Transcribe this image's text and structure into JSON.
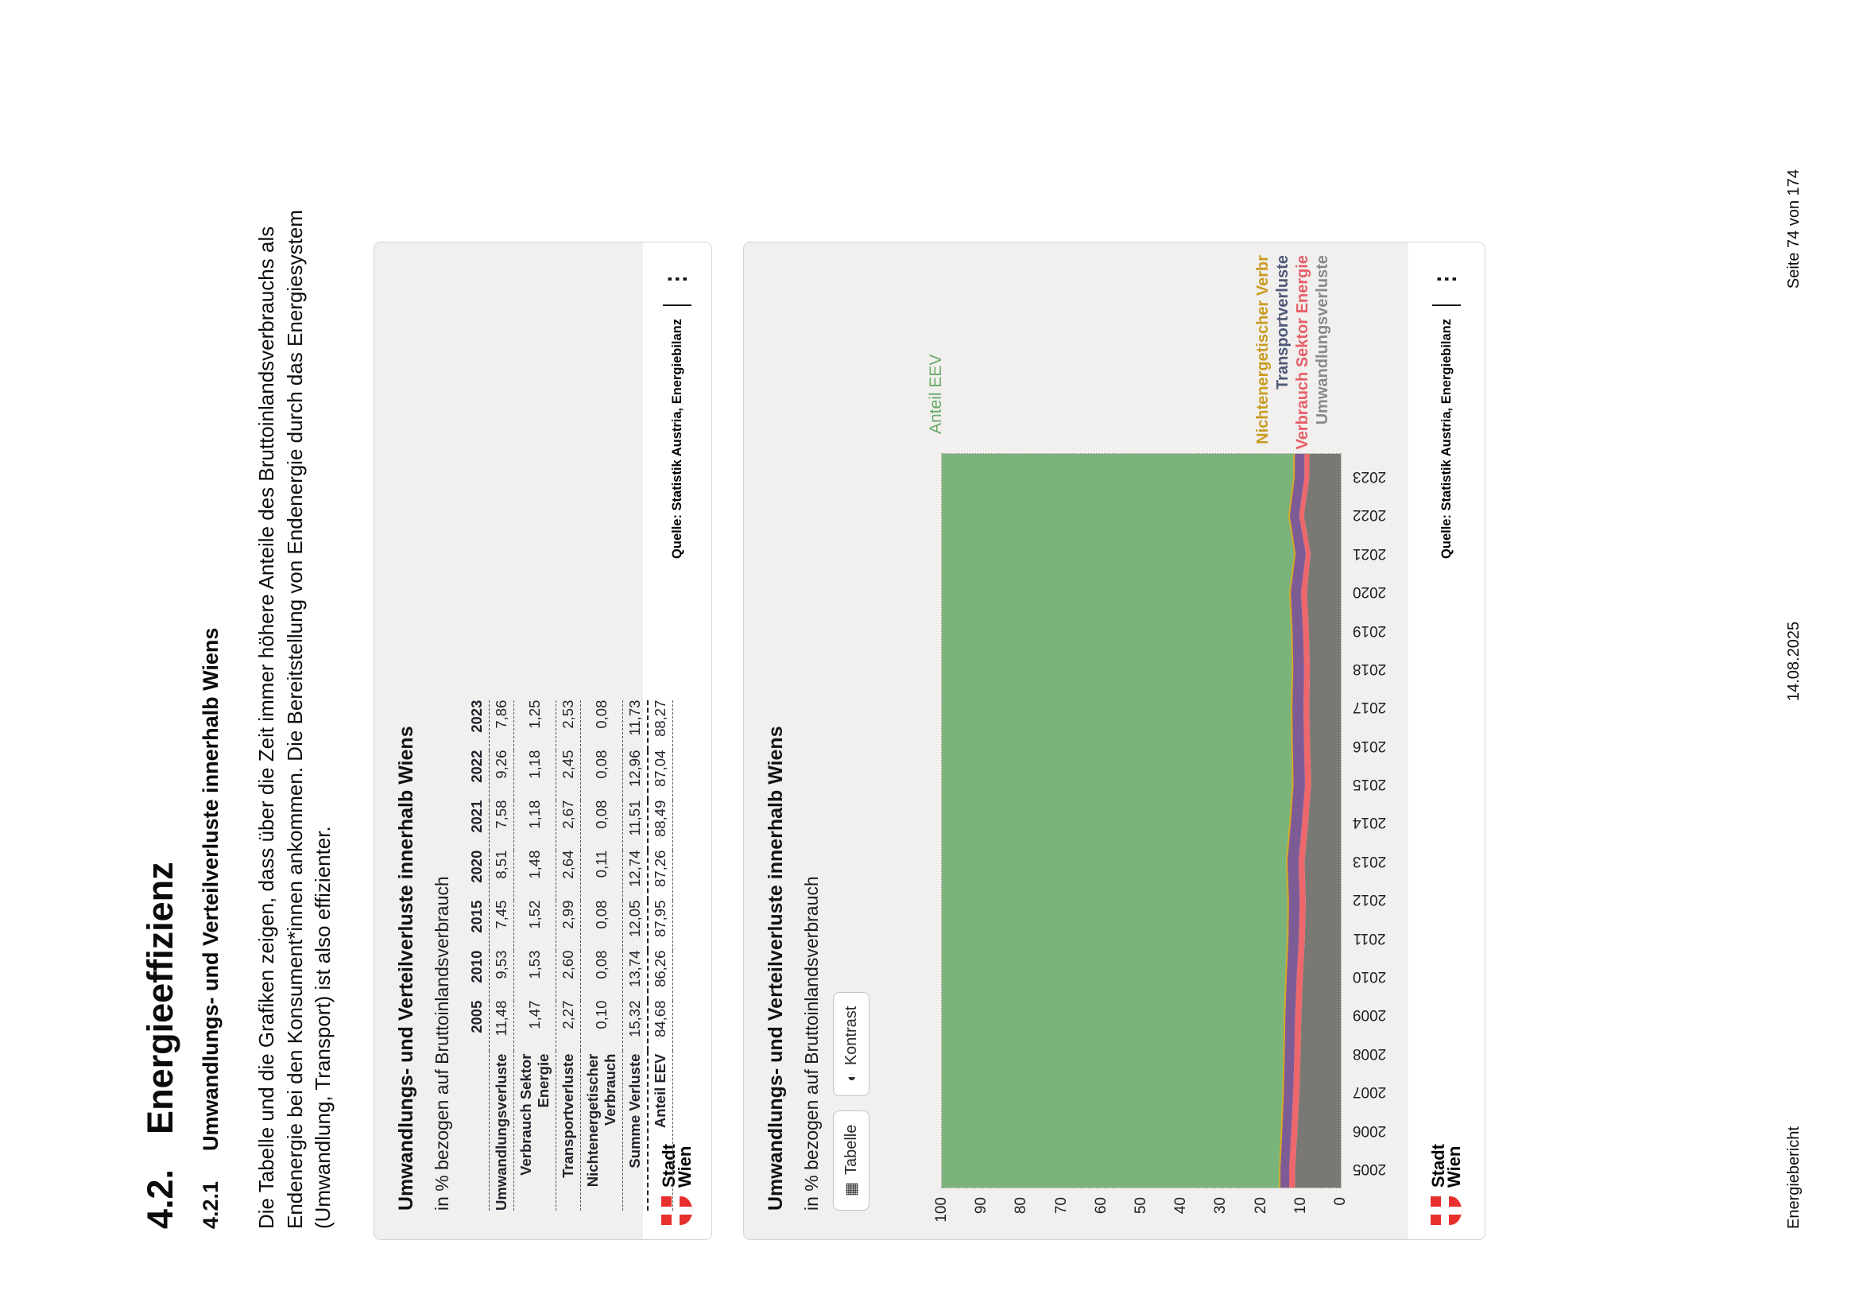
{
  "page": {
    "section_number": "4.2.",
    "section_title": "Energieeffizienz",
    "subsection_number": "4.2.1",
    "subsection_title": "Umwandlungs- und Verteilverluste innerhalb Wiens",
    "paragraph": "Die Tabelle und die Grafiken zeigen, dass über die Zeit immer höhere Anteile des Bruttoinlandsverbrauchs als Endenergie bei den Konsument*innen ankommen. Die Bereitstellung von Endenergie durch das Energiesystem (Umwandlung, Transport) ist also effizienter.",
    "footer": {
      "left": "Energiebericht",
      "center": "14.08.2025",
      "right": "Seite 74 von 174"
    }
  },
  "branding": {
    "logo_line1": "Stadt",
    "logo_line2": "Wien",
    "logo_color": "#e8302e"
  },
  "icons": {
    "menu": "⋮",
    "table": "▦",
    "contrast": "◐"
  },
  "table_card": {
    "title": "Umwandlungs- und Verteilverluste innerhalb Wiens",
    "subtitle": "in % bezogen auf Bruttoinlandsverbrauch",
    "columns": [
      "2005",
      "2010",
      "2015",
      "2020",
      "2021",
      "2022",
      "2023"
    ],
    "rows": [
      {
        "label": "Umwandlungsverluste",
        "values": [
          "11,48",
          "9,53",
          "7,45",
          "8,51",
          "7,58",
          "9,26",
          "7,86"
        ]
      },
      {
        "label": "Verbrauch Sektor Energie",
        "values": [
          "1,47",
          "1,53",
          "1,52",
          "1,48",
          "1,18",
          "1,18",
          "1,25"
        ]
      },
      {
        "label": "Transportverluste",
        "values": [
          "2,27",
          "2,60",
          "2,99",
          "2,64",
          "2,67",
          "2,45",
          "2,53"
        ]
      },
      {
        "label": "Nichtenergetischer Verbrauch",
        "values": [
          "0,10",
          "0,08",
          "0,08",
          "0,11",
          "0,08",
          "0,08",
          "0,08"
        ]
      },
      {
        "label": "Summe Verluste",
        "values": [
          "15,32",
          "13,74",
          "12,05",
          "12,74",
          "11,51",
          "12,96",
          "11,73"
        ]
      },
      {
        "label": "Anteil EEV",
        "values": [
          "84,68",
          "86,26",
          "87,95",
          "87,26",
          "88,49",
          "87,04",
          "88,27"
        ],
        "emphasis": true
      }
    ],
    "source": "Quelle: Statistik Austria, Energiebilanz"
  },
  "chart_card": {
    "title": "Umwandlungs- und Verteilverluste innerhalb Wiens",
    "subtitle": "in % bezogen auf Bruttoinlandsverbrauch",
    "buttons": [
      {
        "label": "Tabelle",
        "icon": "table-icon"
      },
      {
        "label": "Kontrast",
        "icon": "contrast-icon"
      }
    ],
    "area_label": "Anteil EEV",
    "source": "Quelle: Statistik Austria, Energiebilanz"
  },
  "chart_data": {
    "type": "area",
    "stacked": true,
    "title": "Umwandlungs- und Verteilverluste innerhalb Wiens",
    "subtitle": "in % bezogen auf Bruttoinlandsverbrauch",
    "x": [
      2005,
      2006,
      2007,
      2008,
      2009,
      2010,
      2011,
      2012,
      2013,
      2014,
      2015,
      2016,
      2017,
      2018,
      2019,
      2020,
      2021,
      2022,
      2023
    ],
    "ylim": [
      0,
      100
    ],
    "yticks": [
      100,
      90,
      80,
      70,
      60,
      50,
      40,
      30,
      20,
      10,
      0
    ],
    "grid": false,
    "legend_position": "right-bottom",
    "series": [
      {
        "name": "Umwandlungsverluste",
        "color": "#7a7875",
        "values": [
          11.48,
          10.9,
          10.4,
          10.1,
          9.9,
          9.53,
          9.0,
          8.8,
          9.1,
          8.2,
          7.45,
          7.7,
          7.9,
          7.75,
          8.0,
          8.51,
          7.58,
          9.26,
          7.86
        ]
      },
      {
        "name": "Verbrauch Sektor Energie",
        "color": "#ee676b",
        "values": [
          1.47,
          1.5,
          1.52,
          1.54,
          1.55,
          1.53,
          1.52,
          1.51,
          1.5,
          1.51,
          1.52,
          1.5,
          1.47,
          1.44,
          1.46,
          1.48,
          1.18,
          1.18,
          1.25
        ]
      },
      {
        "name": "Transportverluste",
        "color": "#7d5c96",
        "values": [
          2.27,
          2.38,
          2.46,
          2.52,
          2.56,
          2.6,
          2.7,
          2.8,
          2.88,
          2.94,
          2.99,
          2.92,
          2.86,
          2.8,
          2.72,
          2.64,
          2.67,
          2.45,
          2.53
        ]
      },
      {
        "name": "Nichtenergetischer Verbrauch",
        "color": "#d9a827",
        "values": [
          0.1,
          0.09,
          0.09,
          0.08,
          0.08,
          0.08,
          0.08,
          0.08,
          0.08,
          0.08,
          0.08,
          0.09,
          0.1,
          0.1,
          0.1,
          0.11,
          0.08,
          0.08,
          0.08
        ]
      }
    ],
    "remainder_series": {
      "name": "Anteil EEV",
      "color": "#7ab47a",
      "label_color": "#69a869",
      "rule": "100_minus_sum_of_losses"
    },
    "legend": [
      {
        "label": "Nichtenergetischer Verbr",
        "color": "#c99b22"
      },
      {
        "label": "Transportverluste",
        "color": "#4e5878"
      },
      {
        "label": "Verbrauch Sektor Energie",
        "color": "#e65f68"
      },
      {
        "label": "Umwandlungsverluste",
        "color": "#8b8987"
      }
    ]
  }
}
